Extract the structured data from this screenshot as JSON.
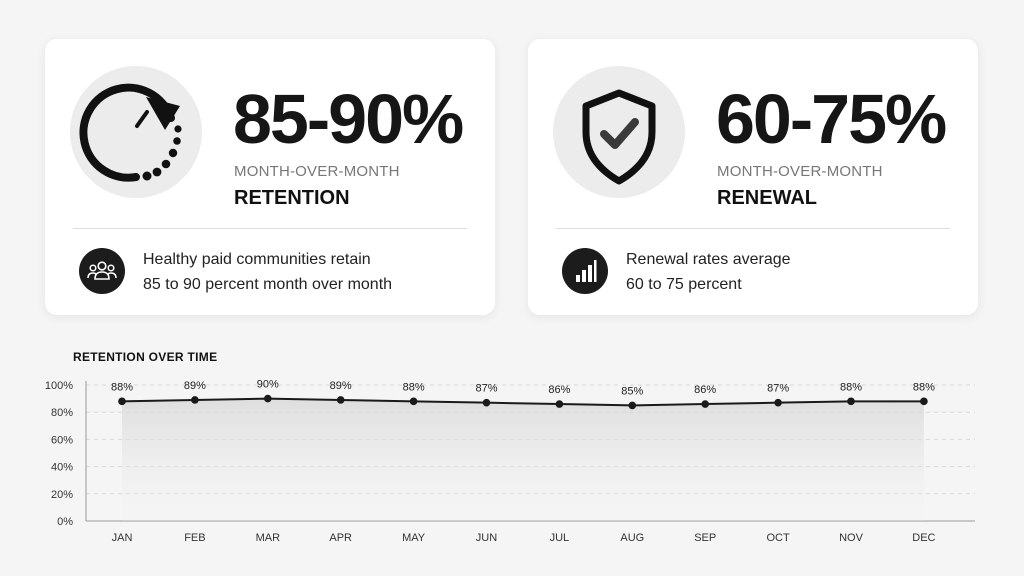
{
  "cards": [
    {
      "value": "85-90%",
      "sublabel": "MONTH-OVER-MONTH",
      "label": "RETENTION",
      "icon": "circular-arrow-icon",
      "footer_icon": "people-icon",
      "footer_line1": "Healthy paid communities retain",
      "footer_line2": "85 to 90 percent month over month"
    },
    {
      "value": "60-75%",
      "sublabel": "MONTH-OVER-MONTH",
      "label": "RENEWAL",
      "icon": "shield-check-icon",
      "footer_icon": "bar-chart-icon",
      "footer_line1": "Renewal rates average",
      "footer_line2": "60 to 75 percent"
    }
  ],
  "chart_data": {
    "type": "line",
    "title": "RETENTION OVER TIME",
    "categories": [
      "JAN",
      "FEB",
      "MAR",
      "APR",
      "MAY",
      "JUN",
      "JUL",
      "AUG",
      "SEP",
      "OCT",
      "NOV",
      "DEC"
    ],
    "series": [
      {
        "values": [
          88,
          89,
          90,
          89,
          88,
          87,
          86,
          85,
          86,
          87,
          88,
          88
        ],
        "data_labels": [
          "88%",
          "89%",
          "90%",
          "89%",
          "88%",
          "87%",
          "86%",
          "85%",
          "86%",
          "87%",
          "88%",
          "88%"
        ]
      }
    ],
    "ylim": [
      0,
      100
    ],
    "yticks": [
      "0%",
      "20%",
      "40%",
      "60%",
      "80%",
      "100%"
    ],
    "grid": "horizontal dashed",
    "fill": "gradient area under line",
    "colors": {
      "line": "#1a1a1a",
      "marker": "#1a1a1a",
      "grid": "#d8d8d8"
    }
  }
}
